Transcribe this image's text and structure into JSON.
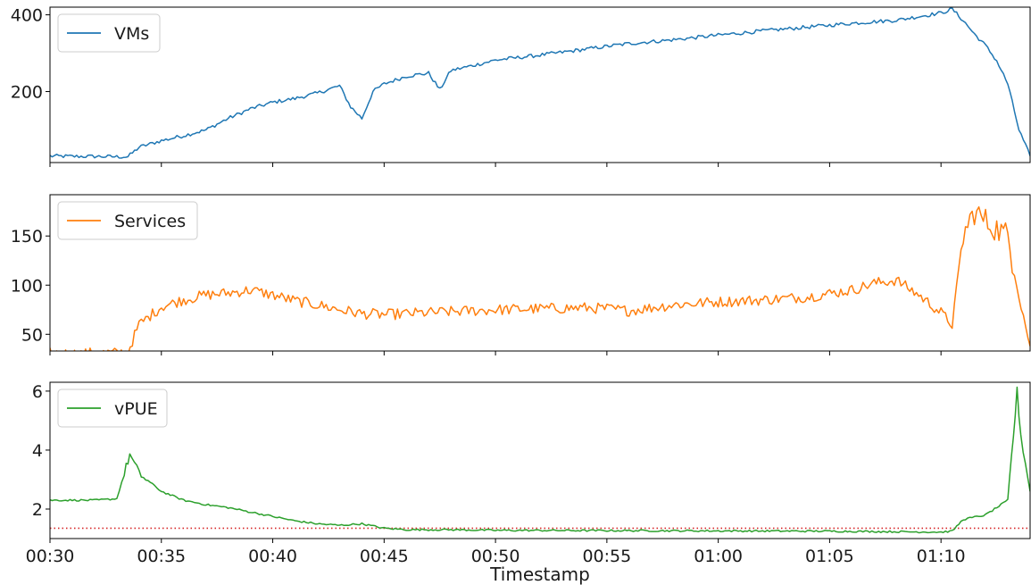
{
  "chart_data": [
    {
      "type": "line",
      "xlabel": "",
      "x_range": [
        "00:30",
        "01:14"
      ],
      "ylim": [
        15,
        420
      ],
      "yticks": [
        200,
        400
      ],
      "legend": "top-left",
      "grid": false,
      "series": [
        {
          "name": "VMs",
          "color": "#1f77b4",
          "points": [
            [
              "00:30",
              32
            ],
            [
              "00:31",
              31
            ],
            [
              "00:32",
              31
            ],
            [
              "00:33",
              30
            ],
            [
              "00:33:30",
              30
            ],
            [
              "00:34",
              55
            ],
            [
              "00:35",
              72
            ],
            [
              "00:36",
              85
            ],
            [
              "00:37",
              100
            ],
            [
              "00:38",
              130
            ],
            [
              "00:39",
              155
            ],
            [
              "00:40",
              172
            ],
            [
              "00:41",
              182
            ],
            [
              "00:42",
              196
            ],
            [
              "00:43",
              215
            ],
            [
              "00:43:30",
              160
            ],
            [
              "00:44",
              130
            ],
            [
              "00:44:30",
              200
            ],
            [
              "00:45",
              220
            ],
            [
              "00:46",
              240
            ],
            [
              "00:47",
              248
            ],
            [
              "00:47:30",
              205
            ],
            [
              "00:48",
              255
            ],
            [
              "00:49",
              268
            ],
            [
              "00:50",
              282
            ],
            [
              "00:52",
              295
            ],
            [
              "00:54",
              310
            ],
            [
              "00:55",
              318
            ],
            [
              "00:56",
              325
            ],
            [
              "00:58",
              335
            ],
            [
              "01:00",
              347
            ],
            [
              "01:02",
              358
            ],
            [
              "01:04",
              368
            ],
            [
              "01:06",
              378
            ],
            [
              "01:08",
              386
            ],
            [
              "01:10",
              405
            ],
            [
              "01:10:30",
              415
            ],
            [
              "01:11",
              385
            ],
            [
              "01:11:30",
              350
            ],
            [
              "01:12",
              320
            ],
            [
              "01:12:30",
              280
            ],
            [
              "01:13",
              220
            ],
            [
              "01:13:30",
              100
            ],
            [
              "01:14",
              32
            ]
          ]
        }
      ]
    },
    {
      "type": "line",
      "xlabel": "",
      "x_range": [
        "00:30",
        "01:14"
      ],
      "ylim": [
        33,
        192
      ],
      "yticks": [
        50,
        100,
        150
      ],
      "legend": "top-left",
      "grid": false,
      "series": [
        {
          "name": "Services",
          "color": "#ff7f0e",
          "points": [
            [
              "00:30",
              31
            ],
            [
              "00:31",
              30
            ],
            [
              "00:32",
              31
            ],
            [
              "00:33",
              31
            ],
            [
              "00:33:30",
              32
            ],
            [
              "00:34",
              60
            ],
            [
              "00:35",
              78
            ],
            [
              "00:36",
              85
            ],
            [
              "00:37",
              90
            ],
            [
              "00:38",
              92
            ],
            [
              "00:39",
              95
            ],
            [
              "00:40",
              90
            ],
            [
              "00:41",
              84
            ],
            [
              "00:42",
              80
            ],
            [
              "00:43",
              75
            ],
            [
              "00:44",
              71
            ],
            [
              "00:45",
              70
            ],
            [
              "00:46",
              71
            ],
            [
              "00:48",
              73
            ],
            [
              "00:50",
              75
            ],
            [
              "00:52",
              76
            ],
            [
              "00:54",
              77
            ],
            [
              "00:55",
              76
            ],
            [
              "00:56",
              74
            ],
            [
              "00:58",
              80
            ],
            [
              "01:00",
              83
            ],
            [
              "01:02",
              85
            ],
            [
              "01:04",
              88
            ],
            [
              "01:06",
              95
            ],
            [
              "01:07",
              102
            ],
            [
              "01:08",
              105
            ],
            [
              "01:09",
              90
            ],
            [
              "01:10",
              72
            ],
            [
              "01:10:30",
              60
            ],
            [
              "01:11",
              150
            ],
            [
              "01:11:30",
              175
            ],
            [
              "01:12",
              165
            ],
            [
              "01:13",
              150
            ],
            [
              "01:13:30",
              90
            ],
            [
              "01:14",
              38
            ]
          ]
        }
      ]
    },
    {
      "type": "line",
      "xlabel": "Timestamp",
      "x_range": [
        "00:30",
        "01:14"
      ],
      "xticks": [
        "00:30",
        "00:35",
        "00:40",
        "00:45",
        "00:50",
        "00:55",
        "01:00",
        "01:05",
        "01:10"
      ],
      "ylim": [
        1.0,
        6.3
      ],
      "yticks": [
        2,
        4,
        6
      ],
      "legend": "top-left",
      "grid": false,
      "reference_line": {
        "y": 1.35,
        "color": "#d62728",
        "style": "dotted"
      },
      "series": [
        {
          "name": "vPUE",
          "color": "#2ca02c",
          "points": [
            [
              "00:30",
              2.3
            ],
            [
              "00:31",
              2.3
            ],
            [
              "00:32",
              2.3
            ],
            [
              "00:33",
              2.35
            ],
            [
              "00:33:20",
              3.2
            ],
            [
              "00:33:35",
              3.85
            ],
            [
              "00:34",
              3.2
            ],
            [
              "00:35",
              2.6
            ],
            [
              "00:36",
              2.3
            ],
            [
              "00:37",
              2.15
            ],
            [
              "00:38",
              2.05
            ],
            [
              "00:39",
              1.9
            ],
            [
              "00:40",
              1.75
            ],
            [
              "00:41",
              1.6
            ],
            [
              "00:42",
              1.5
            ],
            [
              "00:43",
              1.45
            ],
            [
              "00:44",
              1.5
            ],
            [
              "00:45",
              1.35
            ],
            [
              "00:46",
              1.3
            ],
            [
              "00:48",
              1.3
            ],
            [
              "00:50",
              1.28
            ],
            [
              "00:55",
              1.27
            ],
            [
              "01:00",
              1.26
            ],
            [
              "01:05",
              1.25
            ],
            [
              "01:10",
              1.22
            ],
            [
              "01:10:30",
              1.25
            ],
            [
              "01:11",
              1.65
            ],
            [
              "01:12",
              1.8
            ],
            [
              "01:13",
              2.3
            ],
            [
              "01:13:15",
              4.5
            ],
            [
              "01:13:25",
              6.0
            ],
            [
              "01:13:35",
              4.5
            ],
            [
              "01:14",
              2.6
            ]
          ]
        }
      ]
    }
  ]
}
